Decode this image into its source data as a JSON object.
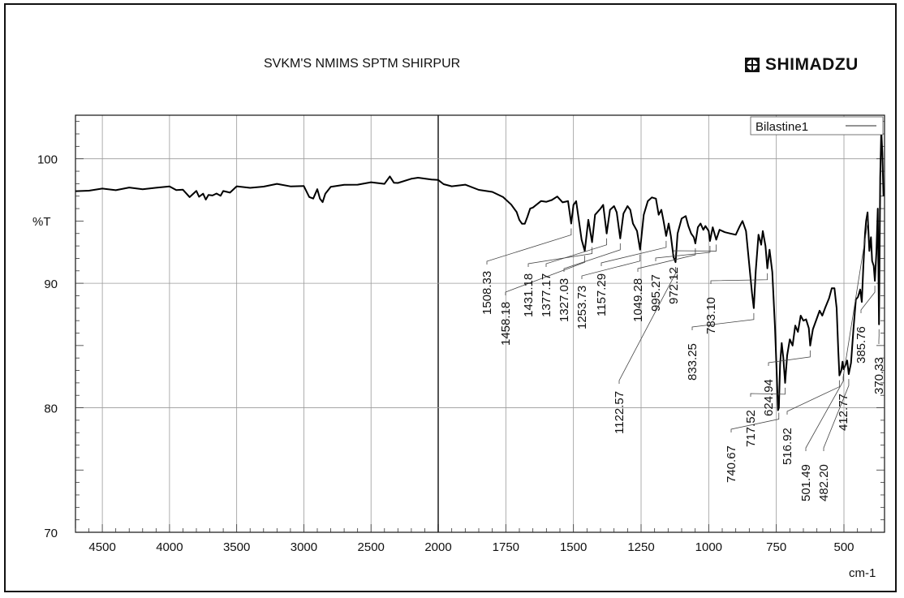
{
  "header": {
    "title": "SVKM'S NMIMS SPTM SHIRPUR",
    "brand": "SHIMADZU"
  },
  "chart_data": {
    "type": "line",
    "title": "",
    "xlabel": "cm-1",
    "ylabel": "%T",
    "x_reversed": true,
    "x_scale_break": 2000,
    "x_scale_note": "x axis is compressed 2x below 2000 cm-1",
    "xlim": [
      4700,
      350
    ],
    "ylim": [
      70,
      103.5
    ],
    "grid": true,
    "legend_position": "top-right",
    "x_ticks": [
      4500,
      4000,
      3500,
      3000,
      2500,
      2000,
      1750,
      1500,
      1250,
      1000,
      750,
      500
    ],
    "x_tick_labels": [
      "4500",
      "4000",
      "3500",
      "3000",
      "2500",
      "2000",
      "1750",
      "1500",
      "1250",
      "1000",
      "750",
      "500"
    ],
    "y_ticks": [
      70,
      80,
      90,
      100
    ],
    "y_tick_labels": [
      "70",
      "80",
      "90",
      "100"
    ],
    "series": [
      {
        "name": "Bilastine1",
        "color": "#000000",
        "points": [
          [
            4700,
            97.4
          ],
          [
            4600,
            97.5
          ],
          [
            4500,
            97.5
          ],
          [
            4400,
            97.6
          ],
          [
            4300,
            97.6
          ],
          [
            4200,
            97.6
          ],
          [
            4100,
            97.7
          ],
          [
            4000,
            97.7
          ],
          [
            3950,
            97.6
          ],
          [
            3900,
            97.4
          ],
          [
            3850,
            97.0
          ],
          [
            3800,
            97.4
          ],
          [
            3780,
            96.9
          ],
          [
            3750,
            97.3
          ],
          [
            3730,
            96.6
          ],
          [
            3710,
            97.2
          ],
          [
            3680,
            97.0
          ],
          [
            3650,
            97.2
          ],
          [
            3620,
            97.1
          ],
          [
            3600,
            97.3
          ],
          [
            3550,
            97.4
          ],
          [
            3500,
            97.7
          ],
          [
            3400,
            97.7
          ],
          [
            3300,
            97.8
          ],
          [
            3200,
            97.9
          ],
          [
            3100,
            97.9
          ],
          [
            3000,
            97.7
          ],
          [
            2960,
            97.0
          ],
          [
            2930,
            96.8
          ],
          [
            2900,
            97.5
          ],
          [
            2880,
            96.9
          ],
          [
            2860,
            96.4
          ],
          [
            2840,
            97.3
          ],
          [
            2800,
            97.7
          ],
          [
            2700,
            97.9
          ],
          [
            2600,
            98.0
          ],
          [
            2500,
            98.0
          ],
          [
            2400,
            98.1
          ],
          [
            2360,
            98.5
          ],
          [
            2330,
            98.1
          ],
          [
            2300,
            98.1
          ],
          [
            2200,
            98.3
          ],
          [
            2150,
            98.6
          ],
          [
            2100,
            98.3
          ],
          [
            2050,
            98.4
          ],
          [
            2000,
            98.3
          ],
          [
            1980,
            97.9
          ],
          [
            1950,
            97.9
          ],
          [
            1900,
            97.8
          ],
          [
            1850,
            97.6
          ],
          [
            1800,
            97.3
          ],
          [
            1760,
            96.9
          ],
          [
            1730,
            96.4
          ],
          [
            1710,
            95.6
          ],
          [
            1700,
            95.2
          ],
          [
            1690,
            94.7
          ],
          [
            1680,
            94.8
          ],
          [
            1670,
            95.4
          ],
          [
            1660,
            95.9
          ],
          [
            1650,
            96.2
          ],
          [
            1620,
            96.5
          ],
          [
            1600,
            96.6
          ],
          [
            1580,
            96.7
          ],
          [
            1560,
            96.9
          ],
          [
            1540,
            96.5
          ],
          [
            1520,
            96.6
          ],
          [
            1508.33,
            94.8
          ],
          [
            1500,
            96.3
          ],
          [
            1490,
            96.6
          ],
          [
            1470,
            93.5
          ],
          [
            1458.18,
            92.6
          ],
          [
            1445,
            95.1
          ],
          [
            1431.18,
            93.3
          ],
          [
            1420,
            95.5
          ],
          [
            1400,
            96.0
          ],
          [
            1390,
            96.3
          ],
          [
            1377.17,
            94.0
          ],
          [
            1365,
            95.9
          ],
          [
            1350,
            96.2
          ],
          [
            1340,
            95.7
          ],
          [
            1327.03,
            93.6
          ],
          [
            1315,
            95.6
          ],
          [
            1300,
            96.2
          ],
          [
            1290,
            95.9
          ],
          [
            1280,
            94.8
          ],
          [
            1265,
            94.2
          ],
          [
            1253.73,
            92.7
          ],
          [
            1240,
            95.5
          ],
          [
            1225,
            96.6
          ],
          [
            1210,
            96.9
          ],
          [
            1195,
            96.8
          ],
          [
            1185,
            95.5
          ],
          [
            1175,
            95.9
          ],
          [
            1167,
            95.0
          ],
          [
            1157.29,
            93.8
          ],
          [
            1148,
            94.8
          ],
          [
            1140,
            93.8
          ],
          [
            1130,
            92.1
          ],
          [
            1122.57,
            91.7
          ],
          [
            1115,
            94.0
          ],
          [
            1100,
            95.2
          ],
          [
            1085,
            95.4
          ],
          [
            1075,
            94.6
          ],
          [
            1065,
            94.0
          ],
          [
            1055,
            93.7
          ],
          [
            1049.28,
            93.2
          ],
          [
            1040,
            94.5
          ],
          [
            1030,
            94.8
          ],
          [
            1020,
            94.3
          ],
          [
            1012,
            94.6
          ],
          [
            1000,
            94.2
          ],
          [
            995.27,
            93.4
          ],
          [
            985,
            94.5
          ],
          [
            972.12,
            93.5
          ],
          [
            960,
            94.3
          ],
          [
            940,
            94.1
          ],
          [
            920,
            94.0
          ],
          [
            900,
            93.9
          ],
          [
            885,
            94.6
          ],
          [
            875,
            95.0
          ],
          [
            862,
            94.2
          ],
          [
            850,
            91.5
          ],
          [
            840,
            89.2
          ],
          [
            833.25,
            88.0
          ],
          [
            826,
            91.0
          ],
          [
            816,
            93.9
          ],
          [
            806,
            93.1
          ],
          [
            800,
            94.2
          ],
          [
            790,
            93.0
          ],
          [
            783.1,
            91.2
          ],
          [
            775,
            92.7
          ],
          [
            765,
            90.9
          ],
          [
            755,
            86.5
          ],
          [
            748,
            82.5
          ],
          [
            744,
            79.8
          ],
          [
            740.67,
            80.0
          ],
          [
            736,
            83.5
          ],
          [
            730,
            85.2
          ],
          [
            724,
            84.0
          ],
          [
            717.52,
            82.0
          ],
          [
            710,
            84.2
          ],
          [
            700,
            85.5
          ],
          [
            690,
            85.0
          ],
          [
            680,
            86.6
          ],
          [
            670,
            86.1
          ],
          [
            660,
            87.4
          ],
          [
            650,
            87.0
          ],
          [
            640,
            87.1
          ],
          [
            630,
            86.4
          ],
          [
            624.94,
            85.0
          ],
          [
            615,
            86.3
          ],
          [
            600,
            87.2
          ],
          [
            590,
            87.8
          ],
          [
            580,
            87.4
          ],
          [
            570,
            88.0
          ],
          [
            555,
            88.8
          ],
          [
            545,
            89.6
          ],
          [
            535,
            89.6
          ],
          [
            527,
            88.0
          ],
          [
            521,
            84.6
          ],
          [
            516.92,
            82.6
          ],
          [
            510,
            83.0
          ],
          [
            505,
            83.7
          ],
          [
            501.49,
            83.1
          ],
          [
            495,
            83.4
          ],
          [
            488,
            83.8
          ],
          [
            482.2,
            82.7
          ],
          [
            474,
            83.6
          ],
          [
            465,
            86.3
          ],
          [
            456,
            88.7
          ],
          [
            448,
            88.9
          ],
          [
            440,
            89.5
          ],
          [
            434,
            88.5
          ],
          [
            428,
            91.5
          ],
          [
            422,
            94.0
          ],
          [
            418,
            95.0
          ],
          [
            412.77,
            95.7
          ],
          [
            406,
            92.6
          ],
          [
            400,
            93.7
          ],
          [
            396,
            91.8
          ],
          [
            390,
            91.4
          ],
          [
            385.76,
            90.2
          ],
          [
            380,
            92.5
          ],
          [
            375,
            96.0
          ],
          [
            370.33,
            86.7
          ],
          [
            366,
            98.5
          ],
          [
            362,
            102.3
          ],
          [
            358,
            100.5
          ],
          [
            354,
            97.0
          ]
        ]
      }
    ],
    "peak_labels": [
      {
        "text": "1508.33",
        "x": 1508.33
      },
      {
        "text": "1458.18",
        "x": 1458.18
      },
      {
        "text": "1431.18",
        "x": 1431.18
      },
      {
        "text": "1377.17",
        "x": 1377.17
      },
      {
        "text": "1327.03",
        "x": 1327.03
      },
      {
        "text": "1253.73",
        "x": 1253.73
      },
      {
        "text": "1157.29",
        "x": 1157.29
      },
      {
        "text": "1122.57",
        "x": 1122.57
      },
      {
        "text": "1049.28",
        "x": 1049.28
      },
      {
        "text": "995.27",
        "x": 995.27
      },
      {
        "text": "972.12",
        "x": 972.12
      },
      {
        "text": "833.25",
        "x": 833.25
      },
      {
        "text": "783.10",
        "x": 783.1
      },
      {
        "text": "740.67",
        "x": 740.67
      },
      {
        "text": "717.52",
        "x": 717.52
      },
      {
        "text": "624.94",
        "x": 624.94
      },
      {
        "text": "516.92",
        "x": 516.92
      },
      {
        "text": "501.49",
        "x": 501.49
      },
      {
        "text": "482.20",
        "x": 482.2
      },
      {
        "text": "412.77",
        "x": 412.77
      },
      {
        "text": "385.76",
        "x": 385.76
      },
      {
        "text": "370.33",
        "x": 370.33
      }
    ]
  }
}
